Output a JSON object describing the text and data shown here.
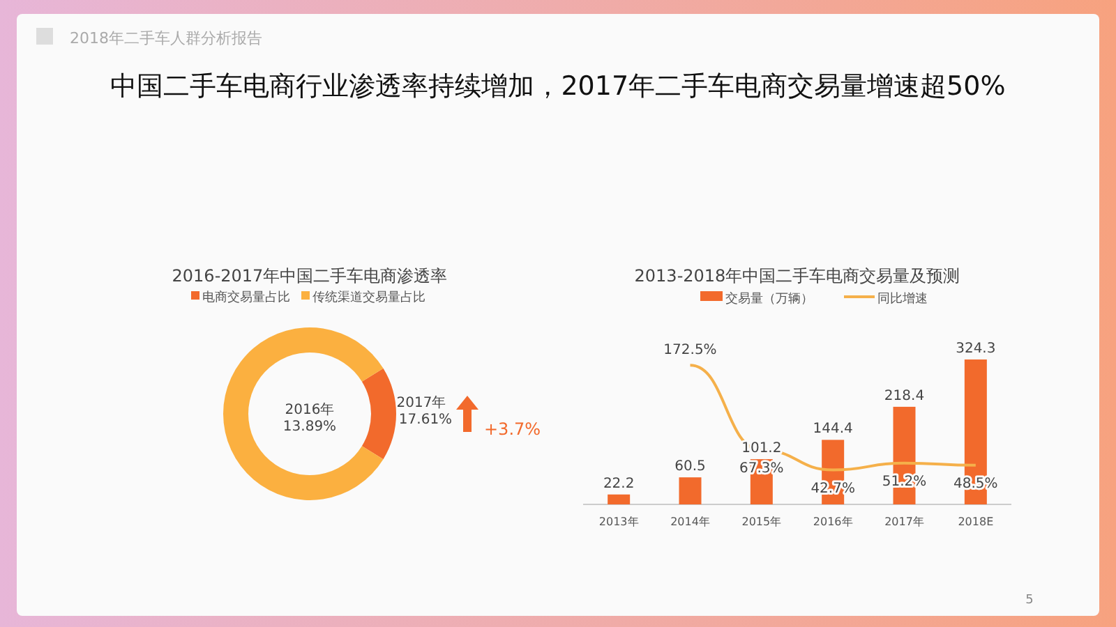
{
  "chart_data": [
    {
      "type": "donut",
      "title": "2016-2017年中国二手车电商渗透率",
      "categories": [
        "电商交易量占比",
        "传统渠道交易量占比"
      ],
      "values": [
        17.61,
        82.39
      ],
      "colors": [
        "#f26a2c",
        "#fbb040"
      ],
      "legend": "top",
      "annotations": [
        "2018年二手车人群分析报告",
        "中国二手车电商行业渗透率持续增加，2017年二手车电商交易量增速超50%",
        "2016年",
        "13.89%",
        "2017年",
        "17.61%",
        "+3.7%"
      ]
    },
    {
      "type": "bar",
      "title": "2013-2018年中国二手车电商交易量及预测",
      "categories": [
        "2013年",
        "2014年",
        "2015年",
        "2016年",
        "2017年",
        "2018E"
      ],
      "legend": "top",
      "data_labels": true,
      "series": [
        {
          "name": "交易量（万辆）",
          "color": "#f26a2c",
          "values": [
            22.2,
            60.5,
            101.2,
            144.4,
            218.4,
            324.3
          ]
        },
        {
          "name": "同比增速",
          "type": "line",
          "axis": "y2",
          "color": "#f5b04a",
          "values": [
            null,
            172.5,
            67.3,
            42.7,
            51.2,
            48.5
          ],
          "value_labels": [
            null,
            "172.5%",
            "67.3%",
            "42.7%",
            "51.2%",
            "48.5%"
          ]
        }
      ],
      "annotations": [
        "5"
      ]
    }
  ]
}
